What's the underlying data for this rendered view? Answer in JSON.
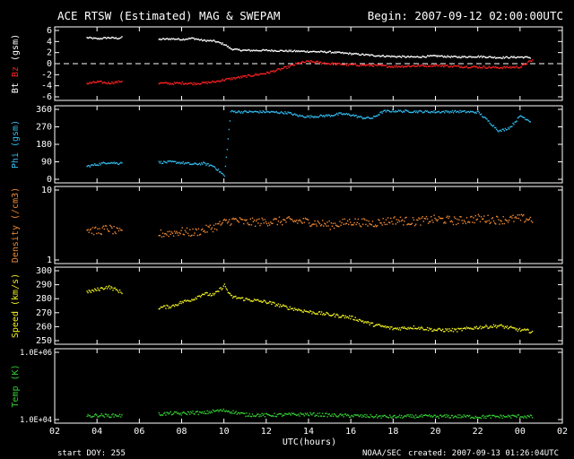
{
  "header": {
    "title": "ACE RTSW (Estimated) MAG & SWEPAM",
    "begin": "Begin: 2007-09-12 02:00:00UTC"
  },
  "footer": {
    "start_doy": "start DOY: 255",
    "source": "NOAA/SEC",
    "created": "created: 2007-09-13 01:26:04UTC"
  },
  "colors": {
    "bt": "#ffffff",
    "bz": "#ff2222",
    "phi": "#33bbee",
    "density": "#ee8833",
    "speed": "#eeee22",
    "temp": "#33cc33",
    "axis": "#ffffff"
  },
  "chart_data": {
    "type": "scatter",
    "x_axis": {
      "label": "UTC(hours)",
      "ticks": [
        "02",
        "04",
        "06",
        "08",
        "10",
        "12",
        "14",
        "16",
        "18",
        "20",
        "22",
        "00",
        "02"
      ],
      "range_hours": [
        2,
        26
      ]
    },
    "panels": [
      {
        "id": "mag",
        "ylabel_parts": [
          "Bt",
          "Bz",
          "(gsm)"
        ],
        "ylim": [
          -6,
          6
        ],
        "ticks": [
          "6",
          "4",
          "2",
          "0",
          "-2",
          "-4",
          "-6"
        ],
        "zero_line": true,
        "series": [
          {
            "name": "Bt",
            "color_key": "bt",
            "jitter": 0.15,
            "points": [
              [
                3.5,
                4.8
              ],
              [
                4.0,
                4.6
              ],
              [
                4.5,
                4.8
              ],
              [
                5.0,
                4.7
              ],
              [
                5.2,
                4.9
              ],
              [
                6.9,
                4.5
              ],
              [
                7.5,
                4.6
              ],
              [
                8.0,
                4.5
              ],
              [
                8.5,
                4.7
              ],
              [
                9.0,
                4.3
              ],
              [
                9.5,
                4.2
              ],
              [
                10.0,
                3.6
              ],
              [
                10.3,
                2.8
              ],
              [
                10.6,
                2.6
              ],
              [
                11.0,
                2.5
              ],
              [
                12.0,
                2.5
              ],
              [
                13.0,
                2.4
              ],
              [
                14.0,
                2.3
              ],
              [
                15.0,
                2.2
              ],
              [
                16.0,
                1.9
              ],
              [
                17.0,
                1.6
              ],
              [
                18.0,
                1.4
              ],
              [
                19.0,
                1.3
              ],
              [
                20.0,
                1.5
              ],
              [
                21.0,
                1.3
              ],
              [
                22.0,
                1.4
              ],
              [
                23.0,
                1.2
              ],
              [
                24.0,
                1.3
              ],
              [
                24.5,
                1.2
              ]
            ]
          },
          {
            "name": "Bz",
            "color_key": "bz",
            "jitter": 0.2,
            "points": [
              [
                3.5,
                -3.5
              ],
              [
                4.0,
                -3.2
              ],
              [
                4.5,
                -3.4
              ],
              [
                5.0,
                -3.2
              ],
              [
                5.2,
                -3.0
              ],
              [
                6.9,
                -3.4
              ],
              [
                7.5,
                -3.5
              ],
              [
                8.0,
                -3.4
              ],
              [
                8.5,
                -3.5
              ],
              [
                9.0,
                -3.4
              ],
              [
                9.5,
                -3.2
              ],
              [
                10.0,
                -2.8
              ],
              [
                10.5,
                -2.5
              ],
              [
                11.0,
                -2.2
              ],
              [
                12.0,
                -1.6
              ],
              [
                13.0,
                -0.5
              ],
              [
                13.5,
                0.2
              ],
              [
                14.0,
                0.5
              ],
              [
                15.0,
                0.1
              ],
              [
                16.0,
                -0.1
              ],
              [
                17.0,
                -0.2
              ],
              [
                18.0,
                -0.4
              ],
              [
                19.0,
                -0.3
              ],
              [
                20.0,
                -0.2
              ],
              [
                21.0,
                -0.4
              ],
              [
                22.0,
                -0.5
              ],
              [
                23.0,
                -0.6
              ],
              [
                24.0,
                -0.5
              ],
              [
                24.3,
                0.2
              ],
              [
                24.6,
                0.8
              ]
            ]
          }
        ]
      },
      {
        "id": "phi",
        "ylabel_parts": [
          "Phi",
          "(gsm)"
        ],
        "ylim": [
          0,
          360
        ],
        "ticks": [
          "360",
          "270",
          "180",
          "90",
          "0"
        ],
        "series": [
          {
            "name": "Phi",
            "color_key": "phi",
            "jitter": 6,
            "points": [
              [
                3.5,
                70
              ],
              [
                4.0,
                80
              ],
              [
                4.5,
                90
              ],
              [
                5.0,
                85
              ],
              [
                5.2,
                95
              ],
              [
                6.9,
                90
              ],
              [
                7.5,
                92
              ],
              [
                8.0,
                88
              ],
              [
                8.5,
                80
              ],
              [
                9.0,
                85
              ],
              [
                9.5,
                70
              ],
              [
                9.8,
                40
              ],
              [
                10.0,
                20
              ],
              [
                10.3,
                352
              ],
              [
                11.0,
                350
              ],
              [
                12.0,
                350
              ],
              [
                13.0,
                345
              ],
              [
                13.5,
                330
              ],
              [
                14.0,
                325
              ],
              [
                15.0,
                332
              ],
              [
                15.5,
                340
              ],
              [
                16.0,
                335
              ],
              [
                16.5,
                320
              ],
              [
                17.0,
                318
              ],
              [
                17.5,
                352
              ],
              [
                18.0,
                355
              ],
              [
                19.0,
                352
              ],
              [
                20.0,
                350
              ],
              [
                21.0,
                352
              ],
              [
                22.0,
                348
              ],
              [
                22.5,
                300
              ],
              [
                23.0,
                250
              ],
              [
                23.5,
                270
              ],
              [
                24.0,
                330
              ],
              [
                24.5,
                300
              ]
            ]
          }
        ]
      },
      {
        "id": "density",
        "ylabel_parts": [
          "Density",
          "(/cm3)"
        ],
        "log": true,
        "ylim": [
          1,
          10
        ],
        "ticks": [
          "10",
          "1"
        ],
        "series": [
          {
            "name": "Density",
            "color_key": "density",
            "jitter": 0.06,
            "points": [
              [
                3.5,
                2.8
              ],
              [
                4.0,
                2.6
              ],
              [
                4.5,
                2.9
              ],
              [
                5.0,
                2.5
              ],
              [
                5.2,
                2.6
              ],
              [
                6.9,
                2.4
              ],
              [
                7.5,
                2.5
              ],
              [
                8.0,
                2.6
              ],
              [
                8.5,
                2.5
              ],
              [
                9.0,
                2.7
              ],
              [
                9.5,
                3.0
              ],
              [
                10.0,
                3.5
              ],
              [
                10.5,
                3.8
              ],
              [
                11.0,
                3.5
              ],
              [
                12.0,
                3.6
              ],
              [
                13.0,
                3.7
              ],
              [
                14.0,
                3.6
              ],
              [
                15.0,
                3.2
              ],
              [
                16.0,
                3.6
              ],
              [
                17.0,
                3.4
              ],
              [
                18.0,
                3.8
              ],
              [
                19.0,
                3.6
              ],
              [
                20.0,
                3.9
              ],
              [
                21.0,
                3.7
              ],
              [
                22.0,
                4.0
              ],
              [
                23.0,
                3.8
              ],
              [
                24.0,
                4.0
              ],
              [
                24.6,
                3.9
              ]
            ]
          }
        ]
      },
      {
        "id": "speed",
        "ylabel_parts": [
          "Speed",
          "(km/s)"
        ],
        "ylim": [
          250,
          300
        ],
        "ticks": [
          "300",
          "290",
          "280",
          "270",
          "260",
          "250"
        ],
        "series": [
          {
            "name": "Speed",
            "color_key": "speed",
            "jitter": 1.2,
            "points": [
              [
                3.5,
                285
              ],
              [
                4.0,
                287
              ],
              [
                4.5,
                289
              ],
              [
                5.0,
                286
              ],
              [
                5.2,
                284
              ],
              [
                6.9,
                274
              ],
              [
                7.5,
                275
              ],
              [
                8.0,
                278
              ],
              [
                8.5,
                280
              ],
              [
                9.0,
                284
              ],
              [
                9.5,
                283
              ],
              [
                10.0,
                290
              ],
              [
                10.3,
                282
              ],
              [
                11.0,
                280
              ],
              [
                12.0,
                278
              ],
              [
                13.0,
                274
              ],
              [
                14.0,
                271
              ],
              [
                15.0,
                269
              ],
              [
                16.0,
                267
              ],
              [
                17.0,
                262
              ],
              [
                18.0,
                259
              ],
              [
                19.0,
                260
              ],
              [
                20.0,
                258
              ],
              [
                21.0,
                258
              ],
              [
                22.0,
                260
              ],
              [
                23.0,
                261
              ],
              [
                24.0,
                258
              ],
              [
                24.6,
                257
              ]
            ]
          }
        ]
      },
      {
        "id": "temp",
        "ylabel_parts": [
          "Temp",
          "(K)"
        ],
        "log": true,
        "ylim": [
          10000,
          1000000
        ],
        "ticks": [
          "1.0E+06",
          "1.0E+04"
        ],
        "series": [
          {
            "name": "Temp",
            "color_key": "temp",
            "jitter": 0.05,
            "points": [
              [
                3.5,
                13000
              ],
              [
                4.0,
                14000
              ],
              [
                4.5,
                13500
              ],
              [
                5.0,
                14000
              ],
              [
                5.2,
                13000
              ],
              [
                6.9,
                15000
              ],
              [
                7.5,
                16000
              ],
              [
                8.0,
                15500
              ],
              [
                8.5,
                17000
              ],
              [
                9.0,
                16000
              ],
              [
                9.5,
                18500
              ],
              [
                10.0,
                19500
              ],
              [
                10.5,
                17000
              ],
              [
                11.0,
                14500
              ],
              [
                12.0,
                14000
              ],
              [
                13.0,
                14500
              ],
              [
                14.0,
                15000
              ],
              [
                15.0,
                14000
              ],
              [
                16.0,
                13500
              ],
              [
                17.0,
                13000
              ],
              [
                18.0,
                12500
              ],
              [
                19.0,
                13000
              ],
              [
                20.0,
                12800
              ],
              [
                21.0,
                13000
              ],
              [
                22.0,
                12500
              ],
              [
                23.0,
                12800
              ],
              [
                24.0,
                13000
              ],
              [
                24.6,
                12500
              ]
            ]
          }
        ]
      }
    ]
  }
}
